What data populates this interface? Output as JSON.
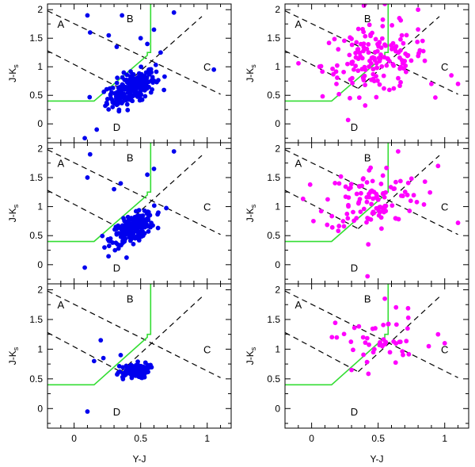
{
  "figure": {
    "background": "#ffffff",
    "colors": {
      "blue": "#0000ee",
      "magenta": "#ff00ff",
      "green": "#33dd33"
    }
  },
  "chart_data": {
    "type": "scatter",
    "grid": "3 rows x 2 columns, shared axes",
    "xlabel": "Y-J",
    "ylabel": "J-K",
    "ylabel_subscript": "s",
    "xlim": [
      -0.2,
      1.18
    ],
    "ylim": [
      -0.33,
      2.1
    ],
    "xticks": [
      0,
      0.5,
      1
    ],
    "xticklabels": [
      "0",
      "0.5",
      "1"
    ],
    "yticks": [
      0,
      0.5,
      1,
      1.5,
      2
    ],
    "yticklabels": [
      "0",
      "0.5",
      "1",
      "1.5",
      "2"
    ],
    "region_labels": [
      {
        "text": "A",
        "x": -0.1,
        "y": 1.75
      },
      {
        "text": "B",
        "x": 0.42,
        "y": 1.85
      },
      {
        "text": "C",
        "x": 1.0,
        "y": 1.0
      },
      {
        "text": "D",
        "x": 0.32,
        "y": -0.05
      }
    ],
    "dashed_lines": [
      {
        "x": [
          -0.2,
          1.1
        ],
        "y": [
          1.98,
          0.52
        ]
      },
      {
        "x": [
          -0.2,
          0.35
        ],
        "y": [
          1.28,
          0.62
        ]
      },
      {
        "x": [
          0.35,
          0.96
        ],
        "y": [
          0.62,
          1.88
        ]
      }
    ],
    "green_boundary": {
      "x": [
        -0.2,
        0.15,
        0.55,
        0.55,
        0.575,
        0.575
      ],
      "y": [
        0.4,
        0.4,
        1.2,
        1.25,
        1.25,
        2.1
      ]
    },
    "panels": [
      {
        "name": "row1-left",
        "color": "#0000ee",
        "n": 240,
        "cx": 0.43,
        "cy": 0.62,
        "sx": 0.09,
        "sy": 0.16,
        "rho": 0.55,
        "extra_x": [
          0.1,
          0.12,
          0.26,
          0.32,
          0.36,
          0.5,
          0.55,
          0.6,
          0.65,
          0.75,
          1.05,
          0.17,
          0.08
        ],
        "extra_y": [
          1.9,
          1.6,
          1.55,
          1.35,
          1.9,
          1.5,
          1.4,
          1.65,
          1.25,
          1.95,
          0.95,
          -0.1,
          -0.25
        ]
      },
      {
        "name": "row1-right",
        "color": "#ff00ff",
        "n": 160,
        "cx": 0.48,
        "cy": 1.12,
        "sx": 0.2,
        "sy": 0.3,
        "rho": 0.15,
        "extra_x": [
          0.4,
          0.55,
          0.8,
          0.9,
          1.05,
          1.1
        ],
        "extra_y": [
          2.1,
          2.1,
          2.0,
          0.7,
          0.85,
          0.7
        ]
      },
      {
        "name": "row2-left",
        "color": "#0000ee",
        "n": 220,
        "cx": 0.44,
        "cy": 0.62,
        "sx": 0.08,
        "sy": 0.14,
        "rho": 0.6,
        "extra_x": [
          0.1,
          0.3,
          0.35,
          0.55,
          0.6,
          0.75,
          0.12,
          0.08
        ],
        "extra_y": [
          1.5,
          1.3,
          1.4,
          1.55,
          1.65,
          1.95,
          1.9,
          -0.05
        ]
      },
      {
        "name": "row2-right",
        "color": "#ff00ff",
        "n": 110,
        "cx": 0.46,
        "cy": 1.15,
        "sx": 0.18,
        "sy": 0.28,
        "rho": 0.1,
        "extra_x": [
          0.42,
          0.65,
          0.95,
          1.1,
          0.72
        ],
        "extra_y": [
          -0.2,
          1.95,
          1.7,
          0.72,
          1.2
        ]
      },
      {
        "name": "row3-left",
        "color": "#0000ee",
        "n": 90,
        "cx": 0.44,
        "cy": 0.62,
        "sx": 0.06,
        "sy": 0.07,
        "rho": 0.3,
        "extra_x": [
          0.1,
          0.2,
          0.22,
          0.15,
          0.35
        ],
        "extra_y": [
          -0.05,
          1.15,
          0.85,
          0.8,
          0.9
        ]
      },
      {
        "name": "row3-right",
        "color": "#ff00ff",
        "n": 45,
        "cx": 0.5,
        "cy": 1.15,
        "sx": 0.16,
        "sy": 0.25,
        "rho": 0.1,
        "extra_x": [
          0.3,
          0.55,
          0.95,
          0.88,
          1.0
        ],
        "extra_y": [
          0.65,
          1.85,
          1.25,
          1.05,
          1.1
        ]
      }
    ]
  }
}
